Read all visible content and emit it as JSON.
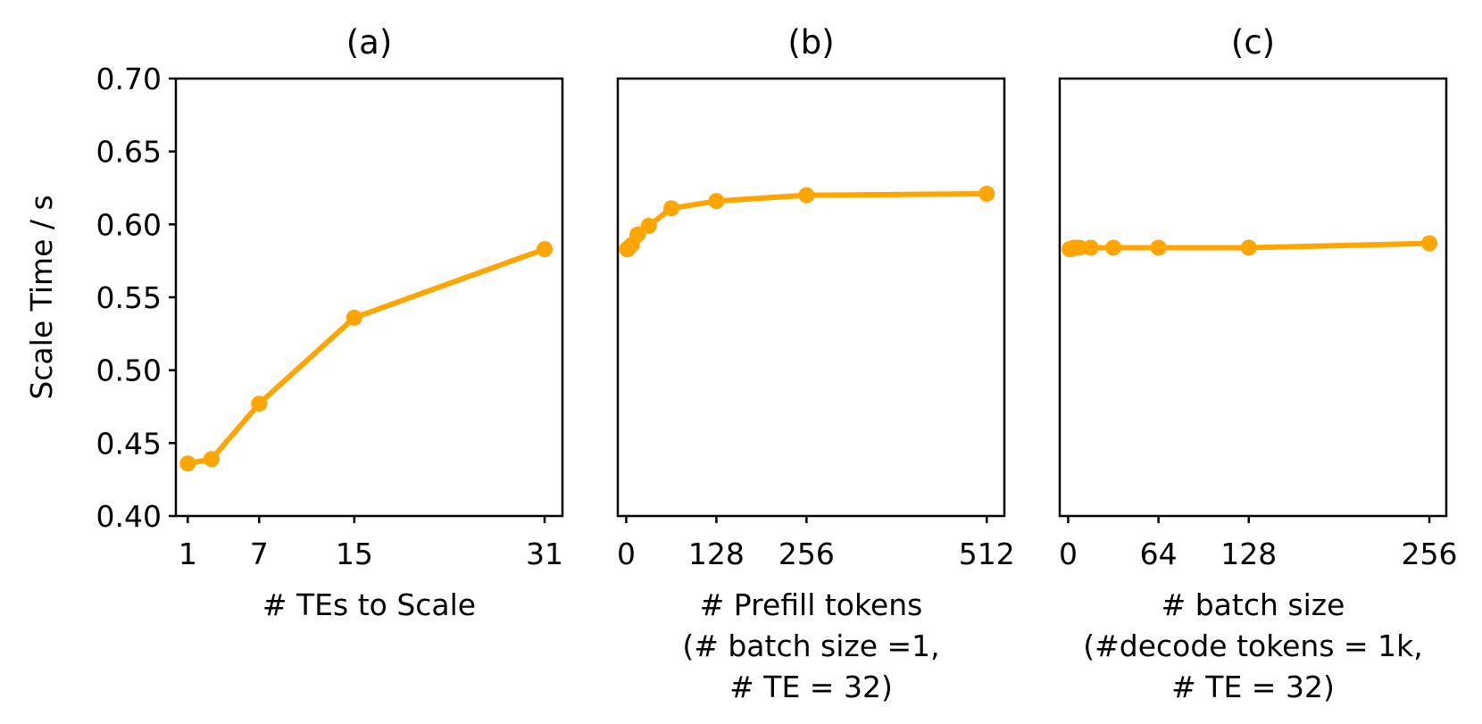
{
  "chart_data": [
    {
      "type": "line",
      "title": "(a)",
      "xlabel": "# TEs to Scale",
      "xlabel_lines": [
        "# TEs to Scale"
      ],
      "ylabel": "Scale Time / s",
      "xlim": [
        0,
        32.5
      ],
      "ylim": [
        0.4,
        0.7
      ],
      "xticks": [
        1,
        7,
        15,
        31
      ],
      "yticks": [
        "0.40",
        "0.45",
        "0.50",
        "0.55",
        "0.60",
        "0.65",
        "0.70"
      ],
      "series": [
        {
          "name": "scale time",
          "x": [
            1,
            3,
            7,
            15,
            31
          ],
          "values": [
            0.436,
            0.439,
            0.477,
            0.536,
            0.583
          ]
        }
      ]
    },
    {
      "type": "line",
      "title": "(b)",
      "xlabel": "# Prefill tokens (# batch size =1, # TE = 32)",
      "xlabel_lines": [
        "# Prefill tokens",
        "(# batch size =1,",
        "# TE = 32)"
      ],
      "ylabel": "",
      "xlim": [
        -12,
        537
      ],
      "ylim": [
        0.4,
        0.7
      ],
      "xticks": [
        0,
        128,
        256,
        512
      ],
      "yticks": [],
      "series": [
        {
          "name": "scale time",
          "x": [
            1,
            2,
            4,
            8,
            16,
            32,
            64,
            128,
            256,
            512
          ],
          "values": [
            0.583,
            0.583,
            0.584,
            0.586,
            0.593,
            0.599,
            0.611,
            0.616,
            0.62,
            0.621
          ]
        }
      ]
    },
    {
      "type": "line",
      "title": "(c)",
      "xlabel": "# batch size (#decode tokens = 1k, # TE = 32)",
      "xlabel_lines": [
        "# batch size",
        "(#decode tokens = 1k,",
        "# TE = 32)"
      ],
      "ylabel": "",
      "xlim": [
        -6,
        268
      ],
      "ylim": [
        0.4,
        0.7
      ],
      "xticks": [
        0,
        64,
        128,
        256
      ],
      "yticks": [],
      "series": [
        {
          "name": "scale time",
          "x": [
            1,
            2,
            4,
            8,
            16,
            32,
            64,
            128,
            256
          ],
          "values": [
            0.583,
            0.583,
            0.584,
            0.584,
            0.584,
            0.584,
            0.584,
            0.584,
            0.587
          ]
        }
      ]
    }
  ],
  "colors": {
    "line": "#ffa500",
    "axes": "#000000"
  }
}
